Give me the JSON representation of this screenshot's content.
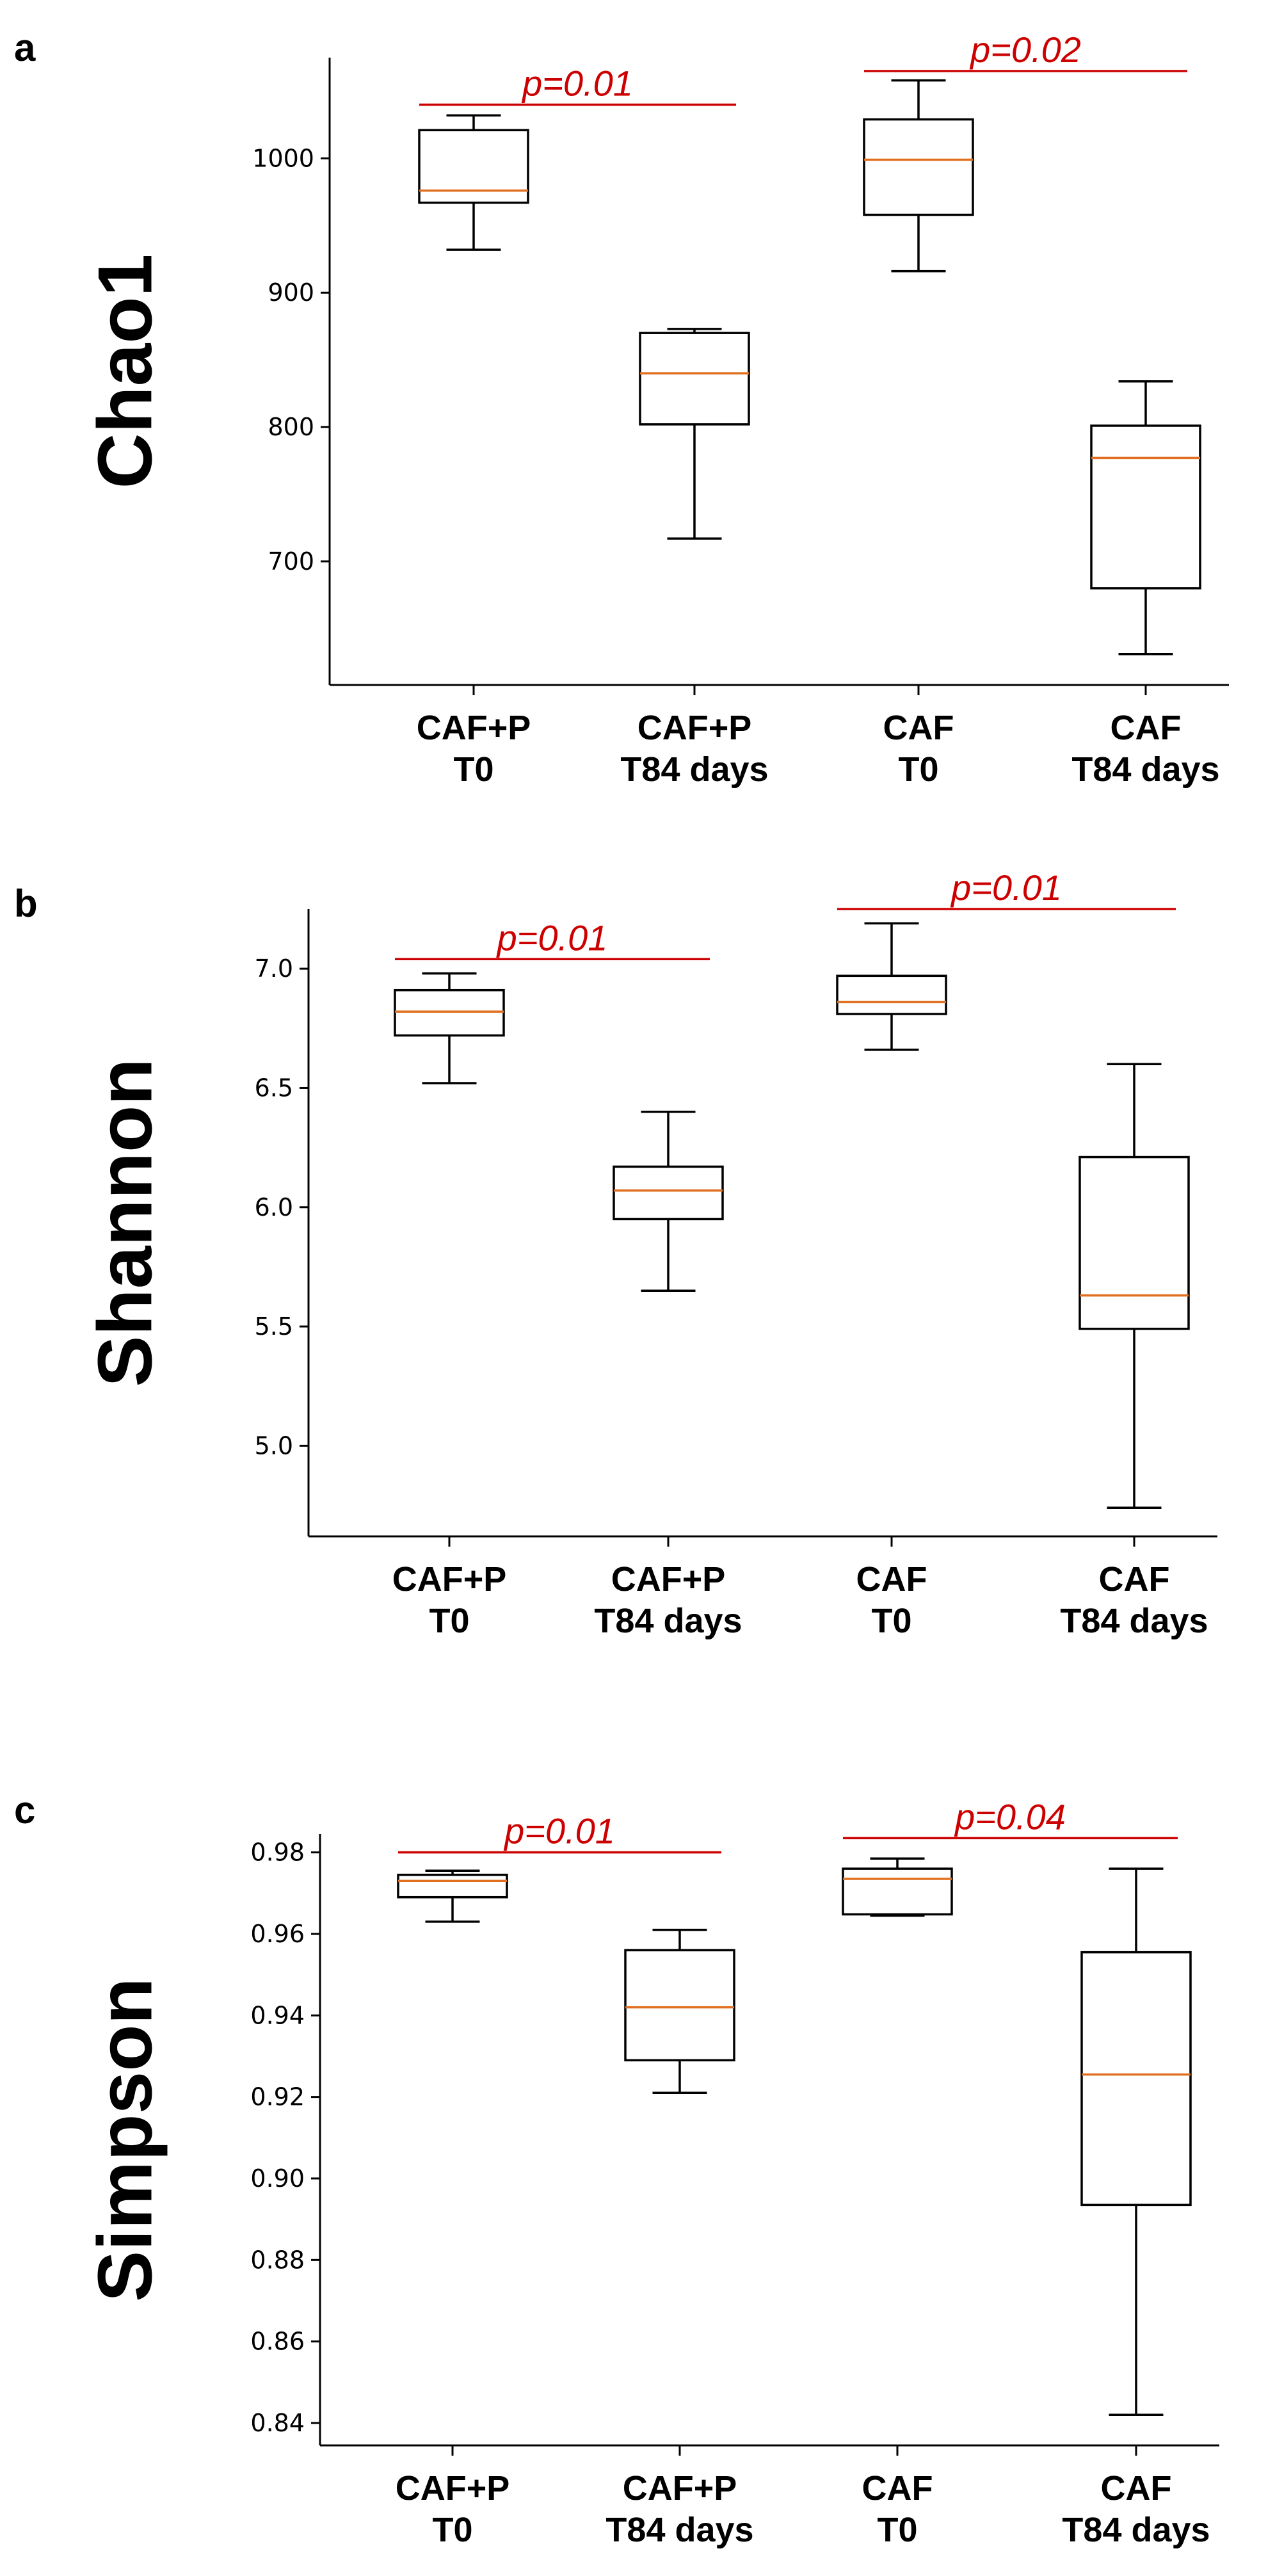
{
  "colors": {
    "axis": "#000000",
    "box": "#000000",
    "median": "#e07020",
    "significance": "#cc0000"
  },
  "chart_data": [
    {
      "type": "box",
      "panel": "a",
      "ylabel": "Chao1",
      "categories": [
        {
          "line1": "CAF+P",
          "line2": "T0"
        },
        {
          "line1": "CAF+P",
          "line2": "T84 days"
        },
        {
          "line1": "CAF",
          "line2": "T0"
        },
        {
          "line1": "CAF",
          "line2": "T84 days"
        }
      ],
      "ylim": [
        608,
        1075
      ],
      "yticks": [
        700,
        800,
        900,
        1000
      ],
      "ytick_labels": [
        "700",
        "800",
        "900",
        "1000"
      ],
      "boxes": [
        {
          "whislo": 932,
          "q1": 967,
          "med": 976,
          "q3": 1021,
          "whishi": 1032
        },
        {
          "whislo": 717,
          "q1": 802,
          "med": 840,
          "q3": 870,
          "whishi": 873
        },
        {
          "whislo": 916,
          "q1": 958,
          "med": 999,
          "q3": 1029,
          "whishi": 1058
        },
        {
          "whislo": 631,
          "q1": 680,
          "med": 777,
          "q3": 801,
          "whishi": 834
        }
      ],
      "annotations": [
        {
          "text": "p=0.01",
          "from": 0,
          "to": 1,
          "y": 1040
        },
        {
          "text": "p=0.02",
          "from": 2,
          "to": 3,
          "y": 1065
        }
      ]
    },
    {
      "type": "box",
      "panel": "b",
      "ylabel": "Shannon",
      "categories": [
        {
          "line1": "CAF+P",
          "line2": "T0"
        },
        {
          "line1": "CAF+P",
          "line2": "T84 days"
        },
        {
          "line1": "CAF",
          "line2": "T0"
        },
        {
          "line1": "CAF",
          "line2": "T84 days"
        }
      ],
      "ylim": [
        4.62,
        7.25
      ],
      "yticks": [
        5.0,
        5.5,
        6.0,
        6.5,
        7.0
      ],
      "ytick_labels": [
        "5.0",
        "5.5",
        "6.0",
        "6.5",
        "7.0"
      ],
      "boxes": [
        {
          "whislo": 6.52,
          "q1": 6.72,
          "med": 6.82,
          "q3": 6.91,
          "whishi": 6.98
        },
        {
          "whislo": 5.65,
          "q1": 5.95,
          "med": 6.07,
          "q3": 6.17,
          "whishi": 6.4
        },
        {
          "whislo": 6.66,
          "q1": 6.81,
          "med": 6.86,
          "q3": 6.97,
          "whishi": 7.19
        },
        {
          "whislo": 4.74,
          "q1": 5.49,
          "med": 5.63,
          "q3": 6.21,
          "whishi": 6.6
        }
      ],
      "annotations": [
        {
          "text": "p=0.01",
          "from": 0,
          "to": 1,
          "y": 7.04
        },
        {
          "text": "p=0.01",
          "from": 2,
          "to": 3,
          "y": 7.25
        }
      ]
    },
    {
      "type": "box",
      "panel": "c",
      "ylabel": "Simpson",
      "categories": [
        {
          "line1": "CAF+P",
          "line2": "T0"
        },
        {
          "line1": "CAF+P",
          "line2": "T84 days"
        },
        {
          "line1": "CAF",
          "line2": "T0"
        },
        {
          "line1": "CAF",
          "line2": "T84 days"
        }
      ],
      "ylim": [
        0.8345,
        0.9845
      ],
      "yticks": [
        0.84,
        0.86,
        0.88,
        0.9,
        0.92,
        0.94,
        0.96,
        0.98
      ],
      "ytick_labels": [
        "0.84",
        "0.86",
        "0.88",
        "0.90",
        "0.92",
        "0.94",
        "0.96",
        "0.98"
      ],
      "boxes": [
        {
          "whislo": 0.963,
          "q1": 0.969,
          "med": 0.973,
          "q3": 0.9745,
          "whishi": 0.9755
        },
        {
          "whislo": 0.921,
          "q1": 0.929,
          "med": 0.942,
          "q3": 0.956,
          "whishi": 0.961
        },
        {
          "whislo": 0.9645,
          "q1": 0.9648,
          "med": 0.9735,
          "q3": 0.976,
          "whishi": 0.9785
        },
        {
          "whislo": 0.842,
          "q1": 0.8935,
          "med": 0.9255,
          "q3": 0.9555,
          "whishi": 0.976
        }
      ],
      "annotations": [
        {
          "text": "p=0.01",
          "from": 0,
          "to": 1,
          "y": 0.98
        },
        {
          "text": "p=0.04",
          "from": 2,
          "to": 3,
          "y": 0.9835
        }
      ]
    }
  ]
}
